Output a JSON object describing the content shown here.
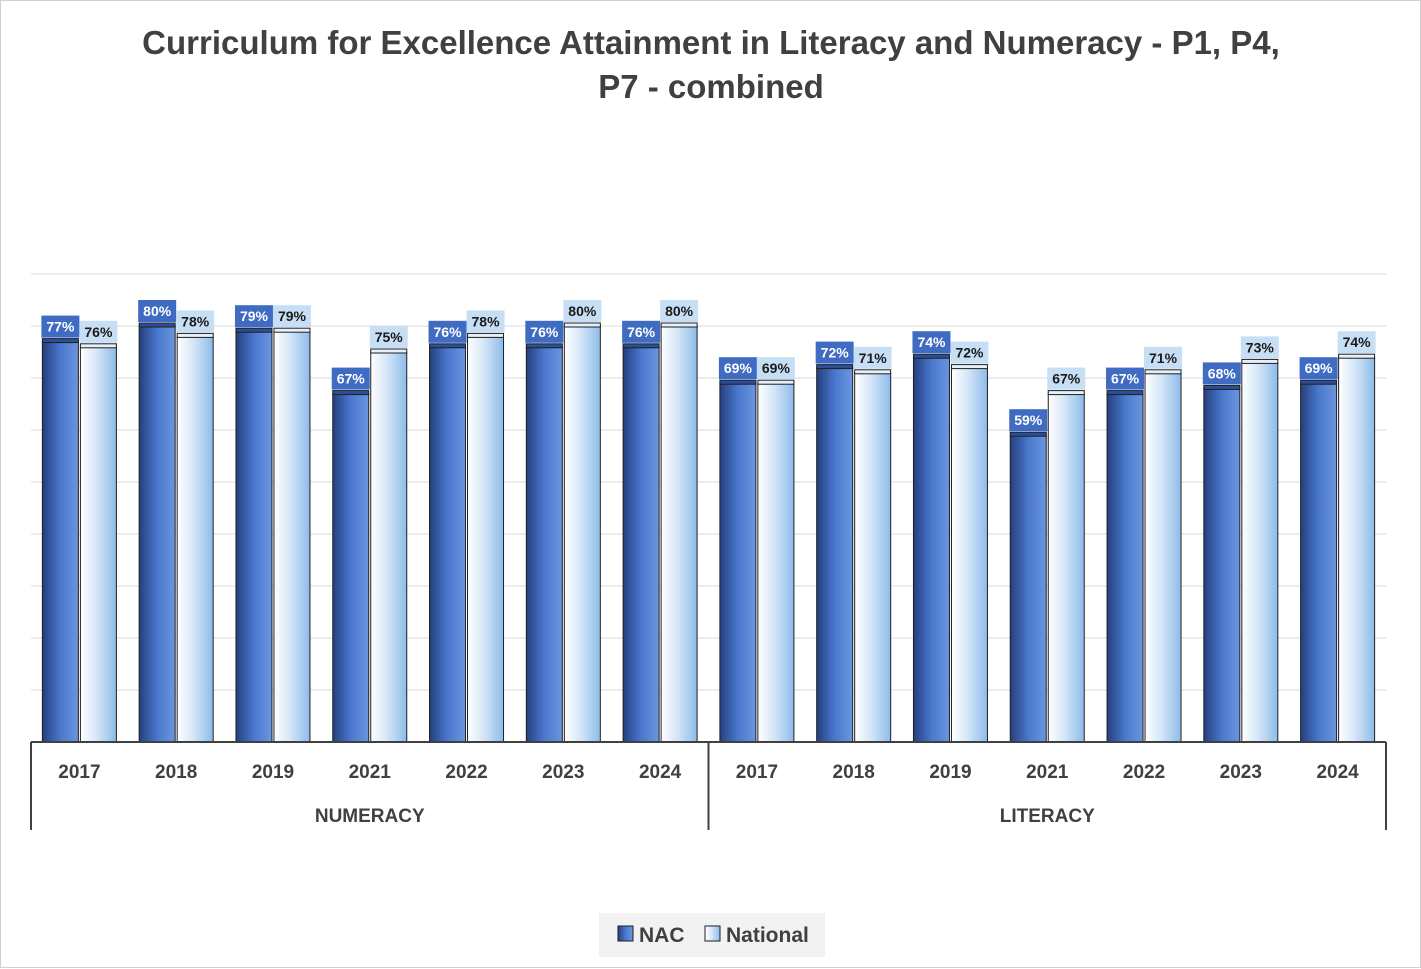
{
  "chart_data": {
    "type": "bar",
    "title": "Curriculum for Excellence Attainment in Literacy and Numeracy - P1, P4, P7 - combined",
    "title_lines": [
      "Curriculum for Excellence Attainment in Literacy and Numeracy - P1, P4,",
      "P7 - combined"
    ],
    "groups": [
      {
        "name": "NUMERACY",
        "categories": [
          "2017",
          "2018",
          "2019",
          "2021",
          "2022",
          "2023",
          "2024"
        ]
      },
      {
        "name": "LITERACY",
        "categories": [
          "2017",
          "2018",
          "2019",
          "2021",
          "2022",
          "2023",
          "2024"
        ]
      }
    ],
    "series": [
      {
        "name": "NAC",
        "values": [
          77,
          80,
          79,
          67,
          76,
          76,
          76,
          69,
          72,
          74,
          59,
          67,
          68,
          69
        ],
        "labels": [
          "77%",
          "80%",
          "79%",
          "67%",
          "76%",
          "76%",
          "76%",
          "69%",
          "72%",
          "74%",
          "59%",
          "67%",
          "68%",
          "69%"
        ],
        "color": "#3a63b4"
      },
      {
        "name": "National",
        "values": [
          76,
          78,
          79,
          75,
          78,
          80,
          80,
          69,
          71,
          72,
          67,
          71,
          73,
          74
        ],
        "labels": [
          "76%",
          "78%",
          "79%",
          "75%",
          "78%",
          "80%",
          "80%",
          "69%",
          "71%",
          "72%",
          "67%",
          "71%",
          "73%",
          "74%"
        ],
        "color": "#bcd6f0"
      }
    ],
    "ylim": [
      0,
      90
    ],
    "y_axis_visible": false,
    "grid": true,
    "legend": "bottom",
    "data_labels": true,
    "colors": {
      "nac_dark": "#2c4f96",
      "nac_light": "#5a86d6",
      "national_light": "#ffffff",
      "national_dark": "#8fbbe8",
      "grid": "#d9d9d9",
      "axis": "#404040"
    }
  }
}
